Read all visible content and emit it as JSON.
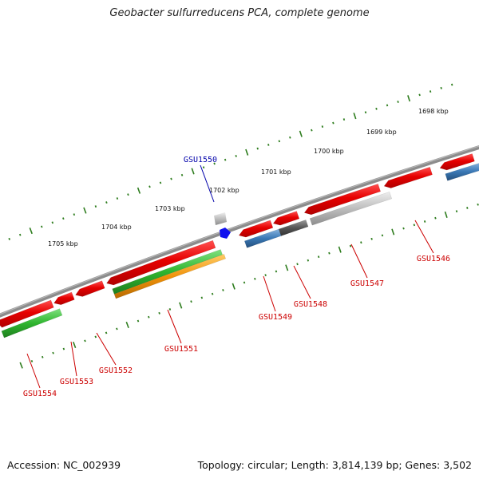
{
  "title": "Geobacter sulfurreducens PCA, complete genome",
  "accession": "Accession: NC_002939",
  "summary": "Topology: circular; Length: 3,814,139 bp; Genes: 3,502",
  "colors": {
    "backbone": "#8c8c8c",
    "ticks": "#2e7d1e",
    "red": "#e60000",
    "green": "#2fb52f",
    "orange": "#f0920a",
    "blue": "#3a78b5",
    "dark_gray": "#555555",
    "light_gray": "#bdbdbd",
    "marker": "#1010ee",
    "label_red": "#cc0000",
    "label_blue": "#0000aa"
  },
  "ruler": [
    {
      "label": "1698 kbp"
    },
    {
      "label": "1699 kbp"
    },
    {
      "label": "1700 kbp"
    },
    {
      "label": "1701 kbp"
    },
    {
      "label": "1702 kbp"
    },
    {
      "label": "1703 kbp"
    },
    {
      "label": "1704 kbp"
    },
    {
      "label": "1705 kbp"
    }
  ],
  "genes": [
    {
      "id": "GSU1546",
      "color": "red"
    },
    {
      "id": "GSU1547",
      "color": "red"
    },
    {
      "id": "GSU1548",
      "color": "red"
    },
    {
      "id": "GSU1549",
      "color": "red"
    },
    {
      "id": "GSU1550",
      "color": "blue"
    },
    {
      "id": "GSU1551",
      "color": "red"
    },
    {
      "id": "GSU1552",
      "color": "red"
    },
    {
      "id": "GSU1553",
      "color": "red"
    },
    {
      "id": "GSU1554",
      "color": "red"
    }
  ]
}
